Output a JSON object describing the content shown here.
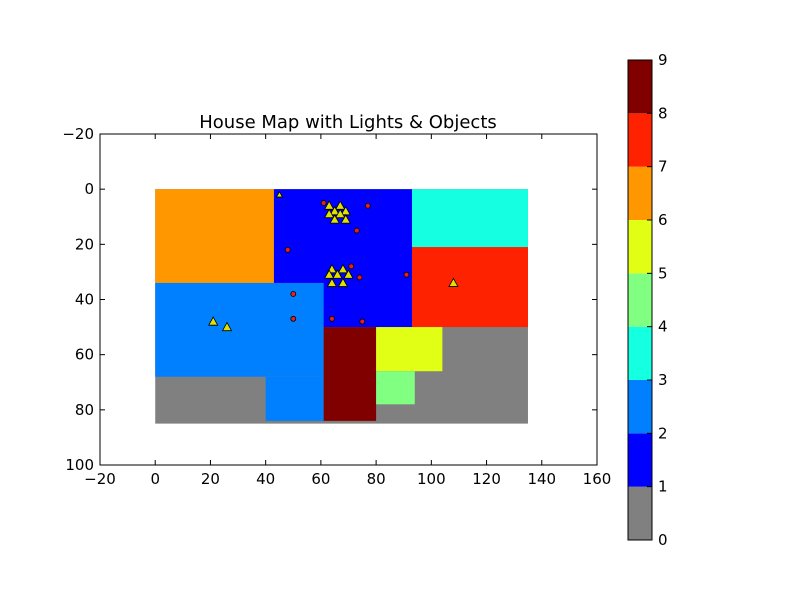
{
  "chart_data": {
    "type": "heatmap",
    "title": "House Map with Lights & Objects",
    "xlabel": "",
    "ylabel": "",
    "xlim": [
      -20,
      160
    ],
    "ylim": [
      -20,
      100
    ],
    "y_inverted": true,
    "grid": false,
    "x_ticks": [
      "−20",
      "0",
      "20",
      "40",
      "60",
      "80",
      "100",
      "120",
      "140",
      "160"
    ],
    "x_tick_values": [
      -20,
      0,
      20,
      40,
      60,
      80,
      100,
      120,
      140,
      160
    ],
    "y_ticks": [
      "−20",
      "0",
      "20",
      "40",
      "60",
      "80",
      "100"
    ],
    "y_tick_values": [
      -20,
      0,
      20,
      40,
      60,
      80,
      100
    ],
    "colormap": [
      "#808080",
      "#0000ff",
      "#0080ff",
      "#15ffe1",
      "#80ff80",
      "#e1ff15",
      "#ff9800",
      "#ff2200",
      "#800000"
    ],
    "colorbar": {
      "range": [
        0,
        9
      ],
      "tick_labels": [
        "0",
        "1",
        "2",
        "3",
        "4",
        "5",
        "6",
        "7",
        "8",
        "9"
      ],
      "tick_values": [
        0,
        1,
        2,
        3,
        4,
        5,
        6,
        7,
        8,
        9
      ]
    },
    "regions": [
      {
        "x0": 0,
        "x1": 135,
        "y0": 0,
        "y1": 85,
        "value": 0
      },
      {
        "x0": 0,
        "x1": 43,
        "y0": 0,
        "y1": 34,
        "value": 6
      },
      {
        "x0": 43,
        "x1": 93,
        "y0": 0,
        "y1": 50,
        "value": 1
      },
      {
        "x0": 93,
        "x1": 135,
        "y0": 0,
        "y1": 21,
        "value": 3
      },
      {
        "x0": 93,
        "x1": 135,
        "y0": 21,
        "y1": 50,
        "value": 7
      },
      {
        "x0": 0,
        "x1": 61,
        "y0": 34,
        "y1": 68,
        "value": 2
      },
      {
        "x0": 40,
        "x1": 61,
        "y0": 68,
        "y1": 84,
        "value": 2
      },
      {
        "x0": 61,
        "x1": 80,
        "y0": 50,
        "y1": 84,
        "value": 8
      },
      {
        "x0": 80,
        "x1": 104,
        "y0": 50,
        "y1": 66,
        "value": 5
      },
      {
        "x0": 80,
        "x1": 94,
        "y0": 66,
        "y1": 78,
        "value": 4
      }
    ],
    "lights": {
      "marker": "triangle",
      "color": "#e1e100",
      "points": [
        [
          45,
          2
        ],
        [
          63,
          6
        ],
        [
          67,
          6
        ],
        [
          65,
          8
        ],
        [
          69,
          8
        ],
        [
          63,
          9
        ],
        [
          67,
          9
        ],
        [
          65,
          11
        ],
        [
          69,
          11
        ],
        [
          64,
          29
        ],
        [
          68,
          29
        ],
        [
          63,
          31
        ],
        [
          66,
          31
        ],
        [
          70,
          31
        ],
        [
          64,
          34
        ],
        [
          68,
          34
        ],
        [
          21,
          48
        ],
        [
          26,
          50
        ],
        [
          108,
          34
        ]
      ]
    },
    "objects": {
      "marker": "circle",
      "color": "#e62020",
      "points": [
        [
          61,
          5
        ],
        [
          77,
          6
        ],
        [
          73,
          15
        ],
        [
          48,
          22
        ],
        [
          71,
          28
        ],
        [
          74,
          32
        ],
        [
          91,
          31
        ],
        [
          50,
          38
        ],
        [
          50,
          47
        ],
        [
          64,
          47
        ],
        [
          75,
          48
        ]
      ]
    }
  }
}
